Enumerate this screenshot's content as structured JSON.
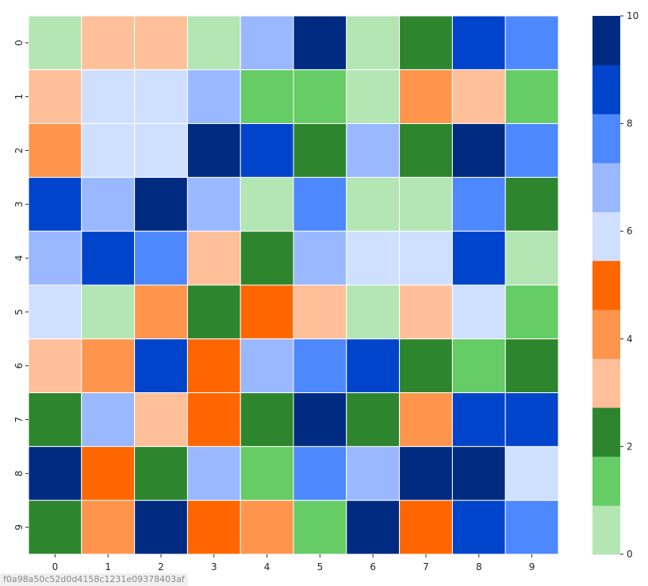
{
  "chart_data": {
    "type": "heatmap",
    "x_categories": [
      "0",
      "1",
      "2",
      "3",
      "4",
      "5",
      "6",
      "7",
      "8",
      "9"
    ],
    "y_categories": [
      "0",
      "1",
      "2",
      "3",
      "4",
      "5",
      "6",
      "7",
      "8",
      "9"
    ],
    "values": [
      [
        0,
        3,
        3,
        0,
        7,
        10,
        0,
        2,
        9,
        8
      ],
      [
        3,
        6,
        6,
        7,
        1,
        1,
        0,
        4,
        3,
        1
      ],
      [
        4,
        6,
        6,
        10,
        9,
        2,
        7,
        2,
        10,
        8
      ],
      [
        9,
        7,
        10,
        7,
        0,
        8,
        0,
        0,
        8,
        2
      ],
      [
        7,
        9,
        8,
        3,
        2,
        7,
        6,
        6,
        9,
        0
      ],
      [
        6,
        0,
        4,
        2,
        5,
        3,
        0,
        3,
        6,
        1
      ],
      [
        3,
        4,
        9,
        5,
        7,
        8,
        9,
        2,
        1,
        2
      ],
      [
        2,
        7,
        3,
        5,
        2,
        10,
        2,
        4,
        9,
        9
      ],
      [
        10,
        5,
        2,
        7,
        1,
        8,
        7,
        10,
        10,
        6
      ],
      [
        2,
        4,
        10,
        5,
        4,
        1,
        10,
        5,
        9,
        8
      ]
    ],
    "vmin": 0,
    "vmax": 10,
    "palette": [
      "#b3e6b3",
      "#66cc66",
      "#2d862d",
      "#ffbf99",
      "#ff944d",
      "#ff6600",
      "#cfdfff",
      "#99b8ff",
      "#4d88ff",
      "#0044cc",
      "#002b80"
    ],
    "colorbar_ticks": [
      "0",
      "2",
      "4",
      "6",
      "8",
      "10"
    ],
    "title": "",
    "xlabel": "",
    "ylabel": "",
    "grid_lines_color": "#ffffff"
  },
  "image_id": "f0a98a50c52d0d4158c1231e09378403af"
}
